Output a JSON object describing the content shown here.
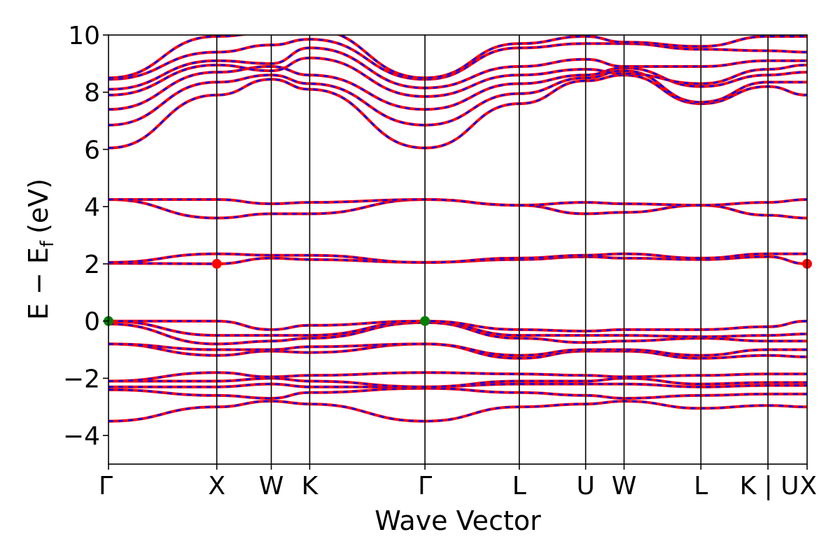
{
  "chart_data": {
    "type": "line",
    "title": "",
    "xlabel": "Wave Vector",
    "ylabel": "E − E",
    "ylabel_subscript": "f",
    "ylabel_unit": "(eV)",
    "ylim": [
      -5,
      10
    ],
    "yticks": [
      -4,
      -2,
      0,
      2,
      4,
      6,
      8,
      10
    ],
    "ytick_labels": [
      "−4",
      "−2",
      "0",
      "2",
      "4",
      "6",
      "8",
      "10"
    ],
    "xlim": [
      0,
      1000
    ],
    "k_points": [
      {
        "label": "Γ",
        "x": 0
      },
      {
        "label": "X",
        "x": 155
      },
      {
        "label": "W",
        "x": 233
      },
      {
        "label": "K",
        "x": 288
      },
      {
        "label": "Γ",
        "x": 453
      },
      {
        "label": "L",
        "x": 588
      },
      {
        "label": "U",
        "x": 683
      },
      {
        "label": "W",
        "x": 738
      },
      {
        "label": "L",
        "x": 848
      },
      {
        "label": "K | U",
        "x": 944
      },
      {
        "label": "X",
        "x": 1000
      }
    ],
    "grid": false,
    "series": [
      {
        "style": "spin-up",
        "color": "#ff0000",
        "bands": [
          {
            "x": [
              0,
              155,
              233,
              288,
              453,
              588,
              683,
              738,
              848,
              944,
              1000
            ],
            "y": [
              -3.5,
              -3.0,
              -2.8,
              -2.9,
              -3.5,
              -3.0,
              -2.9,
              -2.8,
              -3.05,
              -2.95,
              -3.0
            ]
          },
          {
            "x": [
              0,
              155,
              233,
              288,
              453,
              588,
              683,
              738,
              848,
              944,
              1000
            ],
            "y": [
              -2.4,
              -2.6,
              -2.7,
              -2.5,
              -2.35,
              -2.5,
              -2.6,
              -2.7,
              -2.6,
              -2.55,
              -2.55
            ]
          },
          {
            "x": [
              0,
              155,
              233,
              288,
              453,
              588,
              683,
              738,
              848,
              944,
              1000
            ],
            "y": [
              -2.3,
              -2.3,
              -2.2,
              -2.3,
              -2.3,
              -2.2,
              -2.2,
              -2.2,
              -2.3,
              -2.25,
              -2.25
            ]
          },
          {
            "x": [
              0,
              155,
              233,
              288,
              453,
              588,
              683,
              738,
              848,
              944,
              1000
            ],
            "y": [
              -2.1,
              -2.1,
              -2.0,
              -2.1,
              -2.3,
              -2.1,
              -2.1,
              -2.0,
              -2.2,
              -2.15,
              -2.15
            ]
          },
          {
            "x": [
              0,
              155,
              233,
              288,
              453,
              588,
              683,
              738,
              848,
              944,
              1000
            ],
            "y": [
              -2.1,
              -1.8,
              -1.95,
              -1.9,
              -1.8,
              -1.85,
              -1.9,
              -1.95,
              -1.9,
              -1.85,
              -1.85
            ]
          },
          {
            "x": [
              0,
              155,
              233,
              288,
              453,
              588,
              683,
              738,
              848,
              944,
              1000
            ],
            "y": [
              -0.8,
              -1.2,
              -1.05,
              -1.1,
              -0.8,
              -1.3,
              -1.05,
              -1.05,
              -1.3,
              -1.2,
              -1.25
            ]
          },
          {
            "x": [
              0,
              155,
              233,
              288,
              453,
              588,
              683,
              738,
              848,
              944,
              1000
            ],
            "y": [
              -0.8,
              -1.0,
              -1.0,
              -0.9,
              -0.8,
              -1.2,
              -1.0,
              -1.0,
              -1.2,
              -1.0,
              -1.0
            ]
          },
          {
            "x": [
              0,
              155,
              233,
              288,
              453,
              588,
              683,
              738,
              848,
              944,
              1000
            ],
            "y": [
              -0.1,
              -0.8,
              -0.7,
              -0.6,
              -0.05,
              -0.6,
              -0.75,
              -0.7,
              -0.6,
              -0.7,
              -0.7
            ]
          },
          {
            "x": [
              0,
              155,
              233,
              288,
              453,
              588,
              683,
              738,
              848,
              944,
              1000
            ],
            "y": [
              0,
              -0.5,
              -0.5,
              -0.5,
              0,
              -0.5,
              -0.5,
              -0.5,
              -0.55,
              -0.5,
              -0.45
            ]
          },
          {
            "x": [
              0,
              155,
              233,
              288,
              453,
              588,
              683,
              738,
              848,
              944,
              1000
            ],
            "y": [
              0,
              0,
              -0.3,
              -0.15,
              0,
              -0.3,
              -0.35,
              -0.3,
              -0.3,
              -0.2,
              0
            ]
          },
          {
            "x": [
              0,
              155,
              233,
              288,
              453,
              588,
              683,
              738,
              848,
              944,
              1000
            ],
            "y": [
              2.02,
              2.0,
              2.2,
              2.15,
              2.05,
              2.15,
              2.25,
              2.2,
              2.15,
              2.25,
              2.0
            ]
          },
          {
            "x": [
              0,
              155,
              233,
              288,
              453,
              588,
              683,
              738,
              848,
              944,
              1000
            ],
            "y": [
              2.05,
              2.35,
              2.3,
              2.3,
              2.05,
              2.2,
              2.3,
              2.35,
              2.2,
              2.35,
              2.35
            ]
          },
          {
            "x": [
              0,
              155,
              233,
              288,
              453,
              588,
              683,
              738,
              848,
              944,
              1000
            ],
            "y": [
              4.25,
              3.6,
              3.75,
              3.75,
              4.25,
              4.05,
              3.75,
              3.8,
              4.05,
              3.7,
              3.6
            ]
          },
          {
            "x": [
              0,
              155,
              233,
              288,
              453,
              588,
              683,
              738,
              848,
              944,
              1000
            ],
            "y": [
              4.25,
              4.25,
              4.1,
              4.15,
              4.25,
              4.05,
              4.15,
              4.1,
              4.05,
              4.15,
              4.25
            ]
          },
          {
            "x": [
              0,
              155,
              233,
              288,
              453,
              588,
              683,
              738,
              848,
              944,
              1000
            ],
            "y": [
              6.05,
              7.9,
              8.45,
              8.1,
              6.05,
              7.6,
              8.4,
              8.6,
              7.6,
              8.2,
              7.9
            ]
          },
          {
            "x": [
              0,
              155,
              233,
              288,
              453,
              588,
              683,
              738,
              848,
              944,
              1000
            ],
            "y": [
              6.85,
              8.35,
              8.6,
              8.3,
              6.85,
              7.95,
              8.5,
              8.75,
              7.65,
              8.35,
              8.35
            ]
          },
          {
            "x": [
              0,
              155,
              233,
              288,
              453,
              588,
              683,
              738,
              848,
              944,
              1000
            ],
            "y": [
              7.4,
              8.7,
              8.9,
              8.6,
              7.4,
              8.3,
              8.6,
              8.85,
              8.2,
              8.6,
              8.7
            ]
          },
          {
            "x": [
              0,
              155,
              233,
              288,
              453,
              588,
              683,
              738,
              848,
              944,
              1000
            ],
            "y": [
              7.9,
              8.95,
              8.75,
              9.2,
              7.85,
              8.6,
              8.8,
              8.65,
              8.3,
              8.8,
              8.95
            ]
          },
          {
            "x": [
              0,
              155,
              233,
              288,
              453,
              588,
              683,
              738,
              848,
              944,
              1000
            ],
            "y": [
              8.1,
              9.1,
              9.0,
              9.55,
              8.15,
              8.9,
              9.15,
              8.9,
              8.9,
              9.1,
              9.1
            ]
          },
          {
            "x": [
              0,
              155,
              233,
              288,
              453,
              588,
              683,
              738,
              848,
              944,
              1000
            ],
            "y": [
              8.45,
              9.4,
              9.65,
              9.85,
              8.45,
              9.55,
              9.7,
              9.7,
              9.5,
              9.45,
              9.4
            ]
          },
          {
            "x": [
              0,
              155,
              233,
              288,
              453,
              588,
              683,
              738,
              848,
              944,
              1000
            ],
            "y": [
              8.5,
              9.95,
              10.1,
              10.2,
              8.5,
              9.7,
              9.95,
              9.75,
              9.6,
              9.95,
              9.95
            ]
          }
        ]
      }
    ],
    "markers": [
      {
        "x": 0,
        "y": 0,
        "color": "#008000",
        "kind": "VBM"
      },
      {
        "x": 453,
        "y": 0,
        "color": "#008000",
        "kind": "VBM"
      },
      {
        "x": 155,
        "y": 2.0,
        "color": "#ff0000",
        "kind": "CBM"
      },
      {
        "x": 1000,
        "y": 2.0,
        "color": "#ff0000",
        "kind": "CBM"
      }
    ],
    "colors": {
      "up": "#ff0000",
      "down": "#0000ff",
      "vbm": "#008000",
      "cbm": "#ff0000",
      "axis": "#000000"
    }
  }
}
